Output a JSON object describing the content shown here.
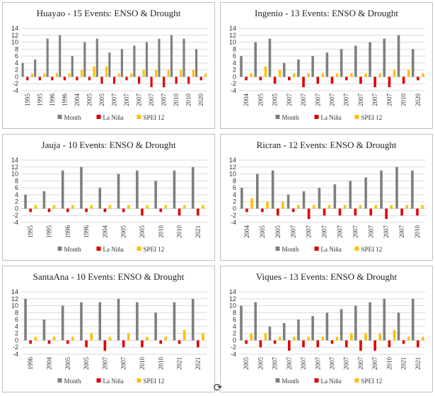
{
  "colors": {
    "month": "#7f7f7f",
    "la_nina": "#e00000",
    "spei": "#ffc000",
    "grid": "#d9d9d9",
    "axis_text": "#333333"
  },
  "legend_labels": [
    "Month",
    "La Niña",
    "SPEI 12"
  ],
  "icon": "rotate-handle-icon",
  "chart_data": [
    {
      "type": "bar",
      "title": "Huayao - 15 Events: ENSO & Drought",
      "categories": [
        "1995",
        "1995",
        "1996",
        "1996",
        "2004",
        "2005",
        "2005",
        "2007",
        "2007",
        "2007",
        "2007",
        "2007",
        "2010",
        "2010",
        "2020"
      ],
      "ylim": [
        -4,
        14
      ],
      "yticks": [
        -4,
        -2,
        0,
        2,
        4,
        6,
        8,
        10,
        12,
        14
      ],
      "series": [
        {
          "name": "Month",
          "values": [
            4,
            5,
            11,
            12,
            6,
            10,
            11,
            7,
            8,
            9,
            10,
            11,
            12,
            11,
            8
          ]
        },
        {
          "name": "La Niña",
          "values": [
            -1,
            -1,
            -1,
            -1,
            -1,
            -1,
            -2,
            -2,
            -1,
            -2,
            -3,
            -3,
            -2,
            -2,
            -1
          ]
        },
        {
          "name": "SPEI 12",
          "values": [
            1,
            1,
            1,
            1,
            2,
            3,
            3,
            1,
            1,
            2,
            2,
            2,
            2,
            2,
            1
          ]
        }
      ]
    },
    {
      "type": "bar",
      "title": "Ingenio - 13 Events: ENSO & Drought",
      "categories": [
        "2004",
        "2005",
        "2005",
        "2007",
        "2007",
        "2007",
        "2007",
        "2007",
        "2007",
        "2007",
        "2007",
        "2010",
        "2020"
      ],
      "ylim": [
        -4,
        14
      ],
      "yticks": [
        -4,
        -2,
        0,
        2,
        4,
        6,
        8,
        10,
        12,
        14
      ],
      "series": [
        {
          "name": "Month",
          "values": [
            6,
            10,
            11,
            4,
            5,
            6,
            7,
            8,
            9,
            10,
            11,
            12,
            8
          ]
        },
        {
          "name": "La Niña",
          "values": [
            -1,
            -1,
            -2,
            -1,
            -3,
            -2,
            -2,
            -1,
            -2,
            -3,
            -3,
            -2,
            -1
          ]
        },
        {
          "name": "SPEI 12",
          "values": [
            1,
            3,
            2,
            1,
            1,
            1,
            1,
            1,
            1,
            1,
            2,
            2,
            1
          ]
        }
      ]
    },
    {
      "type": "bar",
      "title": "Jauja - 10 Events: ENSO & Drought",
      "categories": [
        "1995",
        "1995",
        "1996",
        "1996",
        "2004",
        "2005",
        "2005",
        "2010",
        "2010",
        "2021"
      ],
      "ylim": [
        -4,
        14
      ],
      "yticks": [
        -4,
        -2,
        0,
        2,
        4,
        6,
        8,
        10,
        12,
        14
      ],
      "series": [
        {
          "name": "Month",
          "values": [
            4,
            5,
            11,
            12,
            6,
            10,
            11,
            8,
            11,
            12
          ]
        },
        {
          "name": "La Niña",
          "values": [
            -1,
            -1,
            -1,
            -1,
            -1,
            -1,
            -2,
            -1,
            -2,
            -2
          ]
        },
        {
          "name": "SPEI 12",
          "values": [
            1,
            1,
            1,
            1,
            1,
            1,
            1,
            1,
            1,
            1
          ]
        }
      ]
    },
    {
      "type": "bar",
      "title": "Ricran - 12 Events: ENSO & Drought",
      "categories": [
        "2004",
        "2005",
        "2005",
        "2007",
        "2007",
        "2007",
        "2007",
        "2007",
        "2007",
        "2007",
        "2007",
        "2010"
      ],
      "ylim": [
        -4,
        14
      ],
      "yticks": [
        -4,
        -2,
        0,
        2,
        4,
        6,
        8,
        10,
        12,
        14
      ],
      "series": [
        {
          "name": "Month",
          "values": [
            6,
            10,
            11,
            4,
            5,
            6,
            7,
            8,
            9,
            11,
            12,
            11
          ]
        },
        {
          "name": "La Niña",
          "values": [
            -1,
            -1,
            -2,
            -1,
            -3,
            -2,
            -2,
            -2,
            -2,
            -3,
            -2,
            -2
          ]
        },
        {
          "name": "SPEI 12",
          "values": [
            3,
            2,
            2,
            1,
            1,
            1,
            1,
            1,
            1,
            1,
            1,
            1
          ]
        }
      ]
    },
    {
      "type": "bar",
      "title": "SantaAna - 10 Events: ENSO & Drought",
      "categories": [
        "1996",
        "2004",
        "2005",
        "2005",
        "2007",
        "2007",
        "2010",
        "2010",
        "2021",
        "2021"
      ],
      "ylim": [
        -4,
        14
      ],
      "yticks": [
        -4,
        -2,
        0,
        2,
        4,
        6,
        8,
        10,
        12,
        14
      ],
      "series": [
        {
          "name": "Month",
          "values": [
            12,
            6,
            10,
            11,
            11,
            12,
            11,
            8,
            11,
            12
          ]
        },
        {
          "name": "La Niña",
          "values": [
            -1,
            -1,
            -1,
            -2,
            -3,
            -2,
            -2,
            -1,
            -1,
            -2
          ]
        },
        {
          "name": "SPEI 12",
          "values": [
            1,
            1,
            1,
            2,
            1,
            2,
            1,
            1,
            3,
            2
          ]
        }
      ]
    },
    {
      "type": "bar",
      "title": "Viques - 13 Events: ENSO & Drought",
      "categories": [
        "2005",
        "2005",
        "2007",
        "2007",
        "2007",
        "2007",
        "2007",
        "2007",
        "2007",
        "2007",
        "2010",
        "2021",
        "2021"
      ],
      "ylim": [
        -4,
        14
      ],
      "yticks": [
        -4,
        -2,
        0,
        2,
        4,
        6,
        8,
        10,
        12,
        14
      ],
      "series": [
        {
          "name": "Month",
          "values": [
            10,
            11,
            4,
            5,
            6,
            7,
            8,
            9,
            10,
            11,
            12,
            8,
            12
          ]
        },
        {
          "name": "La Niña",
          "values": [
            -1,
            -2,
            -1,
            -3,
            -2,
            -2,
            -1,
            -2,
            -3,
            -3,
            -2,
            -1,
            -2
          ]
        },
        {
          "name": "SPEI 12",
          "values": [
            2,
            2,
            1,
            1,
            1,
            1,
            1,
            2,
            2,
            2,
            3,
            1,
            1
          ]
        }
      ]
    }
  ]
}
